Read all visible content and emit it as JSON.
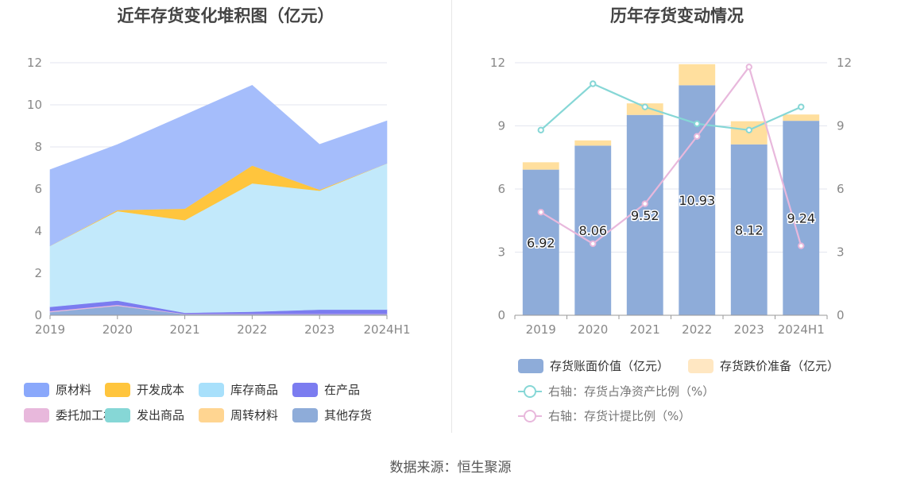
{
  "source": "数据来源：恒生聚源",
  "chart_data": [
    {
      "type": "area",
      "stacked": true,
      "title": "近年存货变化堆积图（亿元）",
      "categories": [
        "2019",
        "2020",
        "2021",
        "2022",
        "2023",
        "2024H1"
      ],
      "ylim": [
        0,
        12
      ],
      "yticks": [
        0,
        2,
        4,
        6,
        8,
        10,
        12
      ],
      "grid": true,
      "legend_position": "bottom",
      "series": [
        {
          "name": "其他存货",
          "color": "#8eacd9",
          "values": [
            0.15,
            0.45,
            0.05,
            0.05,
            0.05,
            0.05
          ]
        },
        {
          "name": "发出商品",
          "color": "#86d7d6",
          "values": [
            0,
            0,
            0,
            0,
            0,
            0
          ]
        },
        {
          "name": "委托加工材料",
          "color": "#e8b8dc",
          "values": [
            0.05,
            0.05,
            0.02,
            0.02,
            0.02,
            0.02
          ]
        },
        {
          "name": "在产品",
          "color": "#7b7cf0",
          "values": [
            0.2,
            0.2,
            0.05,
            0.1,
            0.2,
            0.2
          ]
        },
        {
          "name": "库存商品",
          "color": "#c2e9fb",
          "values": [
            2.9,
            4.25,
            4.4,
            6.1,
            5.65,
            6.95
          ]
        },
        {
          "name": "开发成本",
          "color": "#ffc53d",
          "values": [
            0,
            0.05,
            0.55,
            0.85,
            0.05,
            0
          ]
        },
        {
          "name": "周转材料",
          "color": "#ffd591",
          "values": [
            0,
            0,
            0,
            0,
            0,
            0
          ]
        },
        {
          "name": "原材料",
          "color": "#a5bdfb",
          "values": [
            3.62,
            3.11,
            4.45,
            3.81,
            2.15,
            2.02
          ]
        }
      ],
      "legend": [
        {
          "name": "原材料",
          "color": "#8aa8fb"
        },
        {
          "name": "开发成本",
          "color": "#ffc53d"
        },
        {
          "name": "库存商品",
          "color": "#a8e0fb"
        },
        {
          "name": "在产品",
          "color": "#7b7cf0"
        },
        {
          "name": "委托加工材料",
          "color": "#e8b8dc"
        },
        {
          "name": "发出商品",
          "color": "#86d7d6"
        },
        {
          "name": "周转材料",
          "color": "#ffd591"
        },
        {
          "name": "其他存货",
          "color": "#8eacd9"
        }
      ]
    },
    {
      "type": "bar",
      "stacked": true,
      "title": "历年存货变动情况",
      "categories": [
        "2019",
        "2020",
        "2021",
        "2022",
        "2023",
        "2024H1"
      ],
      "ylim": [
        0,
        12
      ],
      "yticks": [
        0,
        3,
        6,
        9,
        12
      ],
      "y2lim": [
        0,
        12
      ],
      "y2ticks": [
        0,
        3,
        6,
        9,
        12
      ],
      "grid": true,
      "legend_position": "bottom",
      "series": [
        {
          "name": "存货账面价值（亿元）",
          "type": "bar",
          "color": "#8eacd9",
          "values": [
            6.92,
            8.06,
            9.52,
            10.93,
            8.12,
            9.24
          ],
          "labels": [
            "6.92",
            "8.06",
            "9.52",
            "10.93",
            "8.12",
            "9.24"
          ]
        },
        {
          "name": "存货跌价准备（亿元）",
          "type": "bar",
          "color": "#ffdf9e",
          "values": [
            0.35,
            0.25,
            0.55,
            1.0,
            1.1,
            0.3
          ]
        },
        {
          "name": "右轴：存货占净资产比例（%）",
          "type": "line",
          "axis": "right",
          "color": "#86d7d6",
          "values": [
            8.8,
            11.0,
            9.9,
            9.1,
            8.8,
            9.9
          ]
        },
        {
          "name": "右轴：存货计提比例（%）",
          "type": "line",
          "axis": "right",
          "color": "#e8b8dc",
          "values": [
            4.9,
            3.4,
            5.3,
            8.5,
            11.8,
            3.3
          ]
        }
      ],
      "legend": [
        {
          "name": "存货账面价值（亿元）",
          "kind": "swatch",
          "color": "#8eacd9"
        },
        {
          "name": "存货跌价准备（亿元）",
          "kind": "swatch",
          "color": "#ffe7c2"
        },
        {
          "name": "右轴：存货占净资产比例（%）",
          "kind": "ring",
          "color": "#86d7d6"
        },
        {
          "name": "右轴：存货计提比例（%）",
          "kind": "ring",
          "color": "#e8b8dc"
        }
      ]
    }
  ]
}
